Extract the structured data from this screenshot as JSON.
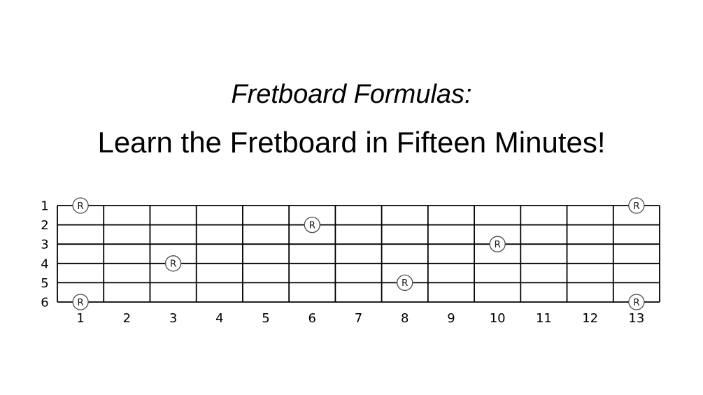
{
  "page": {
    "background": "#ffffff"
  },
  "title": {
    "line1": "Fretboard Formulas:",
    "line2": "Learn the Fretboard in Fifteen Minutes!"
  },
  "diagram": {
    "type": "fretboard",
    "string_labels": [
      "1",
      "2",
      "3",
      "4",
      "5",
      "6"
    ],
    "fret_labels": [
      "1",
      "2",
      "3",
      "4",
      "5",
      "6",
      "7",
      "8",
      "9",
      "10",
      "11",
      "12",
      "13"
    ],
    "marker_symbol": "R",
    "markers": [
      {
        "string": 1,
        "fret": 1,
        "label": "R"
      },
      {
        "string": 1,
        "fret": 13,
        "label": "R"
      },
      {
        "string": 2,
        "fret": 6,
        "label": "R"
      },
      {
        "string": 3,
        "fret": 10,
        "label": "R"
      },
      {
        "string": 4,
        "fret": 3,
        "label": "R"
      },
      {
        "string": 5,
        "fret": 8,
        "label": "R"
      },
      {
        "string": 6,
        "fret": 1,
        "label": "R"
      },
      {
        "string": 6,
        "fret": 13,
        "label": "R"
      }
    ],
    "colors": {
      "grid_line": "#000000",
      "label_text": "#000000",
      "marker_fill": "#ffffff",
      "marker_stroke": "#4d4d4d",
      "marker_text": "#1a1a1a"
    }
  }
}
